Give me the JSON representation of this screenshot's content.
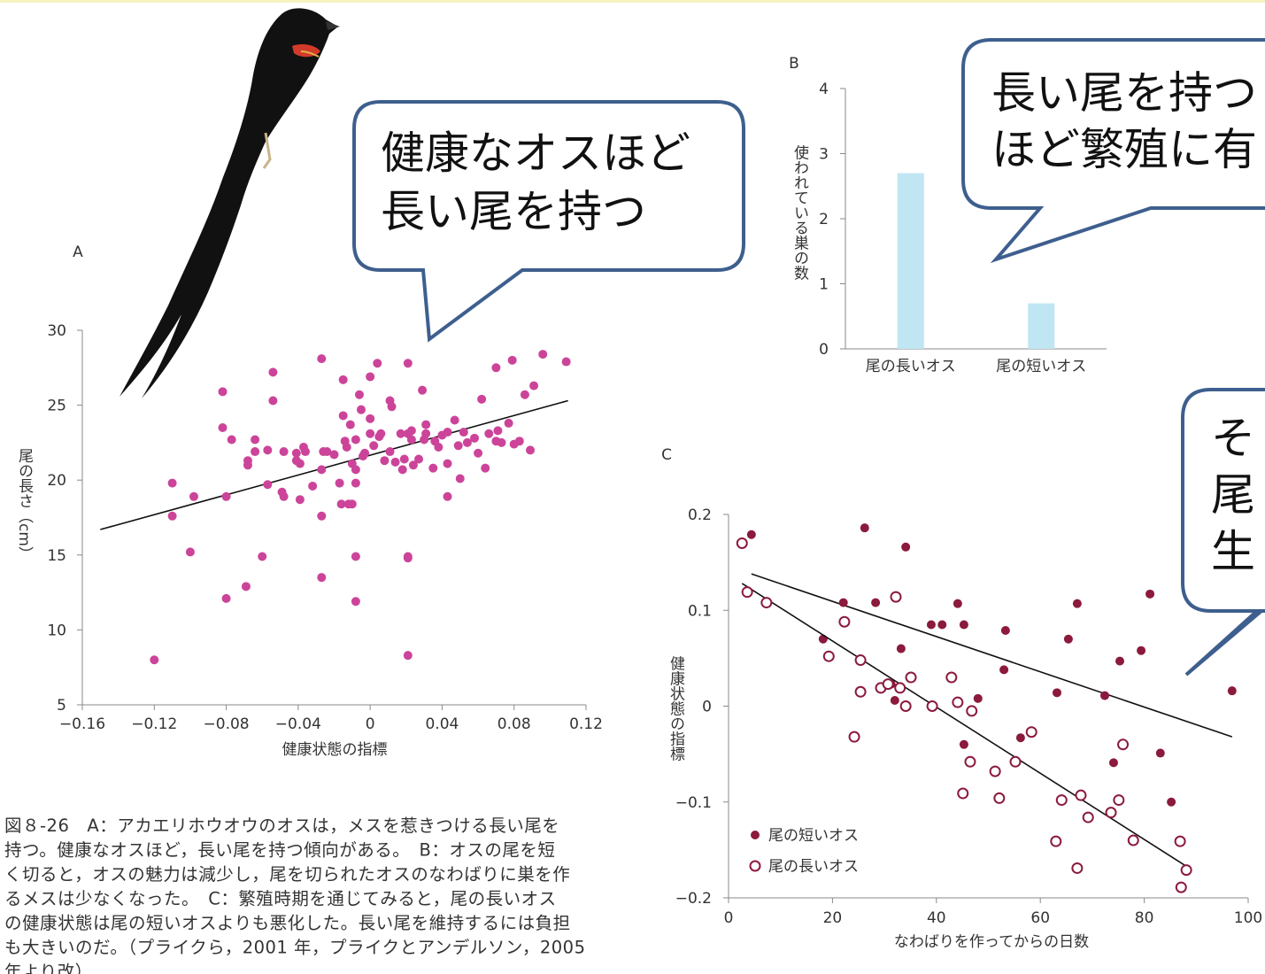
{
  "chart_data": [
    {
      "type": "scatter",
      "panel": "A",
      "x_label": "健康状態の指標",
      "y_label": "尾の長さ（cm）",
      "color": "#cc4499",
      "xlim": [
        -0.16,
        0.12
      ],
      "ylim": [
        5,
        30
      ],
      "xticks": [
        {
          "value": -0.16,
          "label": "−0.16"
        },
        {
          "value": -0.12,
          "label": "−0.12"
        },
        {
          "value": -0.08,
          "label": "−0.08"
        },
        {
          "value": -0.04,
          "label": "−0.04"
        },
        0,
        0.04,
        0.08,
        0.12
      ],
      "yticks": [
        5,
        10,
        15,
        20,
        25,
        30
      ],
      "x": [
        -0.12,
        -0.11,
        -0.11,
        -0.1,
        -0.098,
        -0.082,
        -0.082,
        -0.08,
        -0.08,
        -0.077,
        -0.069,
        -0.068,
        -0.068,
        -0.064,
        -0.064,
        -0.06,
        -0.057,
        -0.057,
        -0.054,
        -0.054,
        -0.049,
        -0.048,
        -0.048,
        -0.041,
        -0.041,
        -0.039,
        -0.039,
        -0.037,
        -0.036,
        -0.032,
        -0.027,
        -0.027,
        -0.027,
        -0.027,
        -0.026,
        -0.024,
        -0.02,
        -0.017,
        -0.016,
        -0.015,
        -0.015,
        -0.014,
        -0.013,
        -0.012,
        -0.011,
        -0.01,
        -0.01,
        -0.008,
        -0.008,
        -0.008,
        -0.008,
        -0.008,
        -0.006,
        -0.005,
        -0.004,
        -0.003,
        0.0,
        0.0,
        0.0,
        0.002,
        0.004,
        0.005,
        0.006,
        0.008,
        0.011,
        0.011,
        0.012,
        0.014,
        0.017,
        0.018,
        0.019,
        0.021,
        0.021,
        0.021,
        0.021,
        0.021,
        0.023,
        0.023,
        0.024,
        0.027,
        0.029,
        0.03,
        0.031,
        0.031,
        0.035,
        0.036,
        0.038,
        0.04,
        0.043,
        0.043,
        0.043,
        0.047,
        0.049,
        0.05,
        0.052,
        0.054,
        0.058,
        0.06,
        0.062,
        0.064,
        0.066,
        0.07,
        0.07,
        0.071,
        0.073,
        0.077,
        0.079,
        0.08,
        0.083,
        0.086,
        0.089,
        0.091,
        0.096,
        0.109
      ],
      "values": [
        8.0,
        19.8,
        17.6,
        15.2,
        18.9,
        25.9,
        23.5,
        18.9,
        12.1,
        22.7,
        12.9,
        21.0,
        21.3,
        22.7,
        21.9,
        14.9,
        19.7,
        22.0,
        25.3,
        27.2,
        19.2,
        21.9,
        18.9,
        21.8,
        21.3,
        21.1,
        18.7,
        22.2,
        21.9,
        19.6,
        28.1,
        17.6,
        13.5,
        20.7,
        21.9,
        21.9,
        21.7,
        19.8,
        18.4,
        26.7,
        24.3,
        22.6,
        22.2,
        18.4,
        23.7,
        21.1,
        18.4,
        22.7,
        20.7,
        14.9,
        11.9,
        19.8,
        25.7,
        24.7,
        21.6,
        21.8,
        24.1,
        23.1,
        26.9,
        22.3,
        27.8,
        22.9,
        23.1,
        21.3,
        25.3,
        21.9,
        24.9,
        21.2,
        23.1,
        20.7,
        21.4,
        27.8,
        14.9,
        14.8,
        8.3,
        23.1,
        22.7,
        23.3,
        21.0,
        21.4,
        26.0,
        22.7,
        23.1,
        23.7,
        20.8,
        22.6,
        22.2,
        23.0,
        23.2,
        18.9,
        21.1,
        24.0,
        22.3,
        20.1,
        23.2,
        22.5,
        22.8,
        21.8,
        25.4,
        20.8,
        23.1,
        27.5,
        22.6,
        23.3,
        22.5,
        23.8,
        28.0,
        22.4,
        22.6,
        25.7,
        22.0,
        26.3,
        28.4,
        27.9
      ],
      "trend": {
        "x": [
          -0.15,
          0.11
        ],
        "values": [
          16.7,
          25.3
        ]
      }
    },
    {
      "type": "bar",
      "panel": "B",
      "y_label": "使われている巣の数",
      "color": "#bfe6f2",
      "categories": [
        "尾の長いオス",
        "尾の短いオス"
      ],
      "values": [
        2.7,
        0.7
      ],
      "ylim": [
        0,
        4
      ],
      "yticks": [
        0,
        1,
        2,
        3,
        4
      ]
    },
    {
      "type": "scatter",
      "panel": "C",
      "x_label": "なわばりを作ってからの日数",
      "y_label": "健康状態の指標",
      "legend": "lower-left",
      "xlim": [
        0,
        100
      ],
      "ylim": [
        -0.2,
        0.2
      ],
      "xticks": [
        0,
        20,
        40,
        60,
        80,
        100
      ],
      "yticks": [
        {
          "value": -0.2,
          "label": "−0.2"
        },
        {
          "value": -0.1,
          "label": "−0.1"
        },
        0,
        0.1,
        0.2
      ],
      "series": [
        {
          "name": "尾の短いオス",
          "color": "#8b1a3c",
          "marker": "filled",
          "x": [
            4.4,
            26.2,
            34.1,
            22.1,
            28.3,
            44.1,
            41.1,
            39.0,
            45.3,
            67.1,
            81.1,
            53.3,
            18.2,
            65.4,
            33.2,
            79.4,
            75.3,
            53.0,
            31.3,
            48.0,
            72.4,
            63.2,
            96.9,
            32.0,
            56.2,
            45.3,
            83.1,
            74.1,
            85.2
          ],
          "values": [
            0.179,
            0.186,
            0.166,
            0.108,
            0.108,
            0.107,
            0.085,
            0.085,
            0.085,
            0.107,
            0.117,
            0.079,
            0.07,
            0.07,
            0.06,
            0.058,
            0.047,
            0.038,
            0.023,
            0.008,
            0.011,
            0.014,
            0.016,
            0.006,
            -0.033,
            -0.04,
            -0.049,
            -0.059,
            -0.1
          ],
          "trend": {
            "x": [
              4.4,
              96.9
            ],
            "values": [
              0.138,
              -0.032
            ]
          }
        },
        {
          "name": "尾の長いオス",
          "color": "#8b1a3c",
          "marker": "open",
          "x": [
            2.6,
            3.6,
            7.3,
            22.3,
            32.2,
            19.3,
            25.4,
            25.4,
            29.3,
            33.0,
            35.1,
            42.9,
            34.1,
            39.2,
            44.1,
            46.8,
            30.7,
            24.2,
            46.5,
            51.3,
            55.2,
            58.3,
            45.1,
            52.1,
            64.1,
            67.8,
            69.2,
            75.1,
            73.6,
            75.9,
            63.0,
            67.1,
            77.9,
            86.9,
            88.1,
            87.1
          ],
          "values": [
            0.17,
            0.119,
            0.108,
            0.088,
            0.114,
            0.052,
            0.048,
            0.015,
            0.019,
            0.019,
            0.03,
            0.03,
            0.0,
            0.0,
            0.004,
            -0.005,
            0.023,
            -0.032,
            -0.058,
            -0.068,
            -0.058,
            -0.027,
            -0.091,
            -0.096,
            -0.098,
            -0.093,
            -0.116,
            -0.098,
            -0.111,
            -0.04,
            -0.141,
            -0.169,
            -0.14,
            -0.141,
            -0.171,
            -0.189
          ],
          "trend": {
            "x": [
              2.6,
              88.1
            ],
            "values": [
              0.128,
              -0.167
            ]
          }
        }
      ]
    }
  ],
  "callouts": [
    {
      "lines": [
        "健康なオスほど",
        "長い尾を持つ"
      ]
    },
    {
      "lines": [
        "長い尾を持つ",
        "ほど繁殖に有"
      ]
    },
    {
      "lines": [
        "そ",
        "尾",
        "生"
      ]
    }
  ],
  "caption": {
    "lines": [
      "図８-26　A：アカエリホウオウのオスは，メスを惹きつける長い尾を",
      "持つ。健康なオスほど，長い尾を持つ傾向がある。　B：オスの尾を短",
      "く切ると，オスの魅力は減少し，尾を切られたオスのなわばりに巣を作",
      "るメスは少なくなった。　C：繁殖時期を通じてみると，尾の長いオス",
      "の健康状態は尾の短いオスよりも悪化した。長い尾を維持するには負担",
      "も大きいのだ。（プライクら，2001 年，プライクとアンデルソン，2005",
      "年より改）"
    ]
  }
}
